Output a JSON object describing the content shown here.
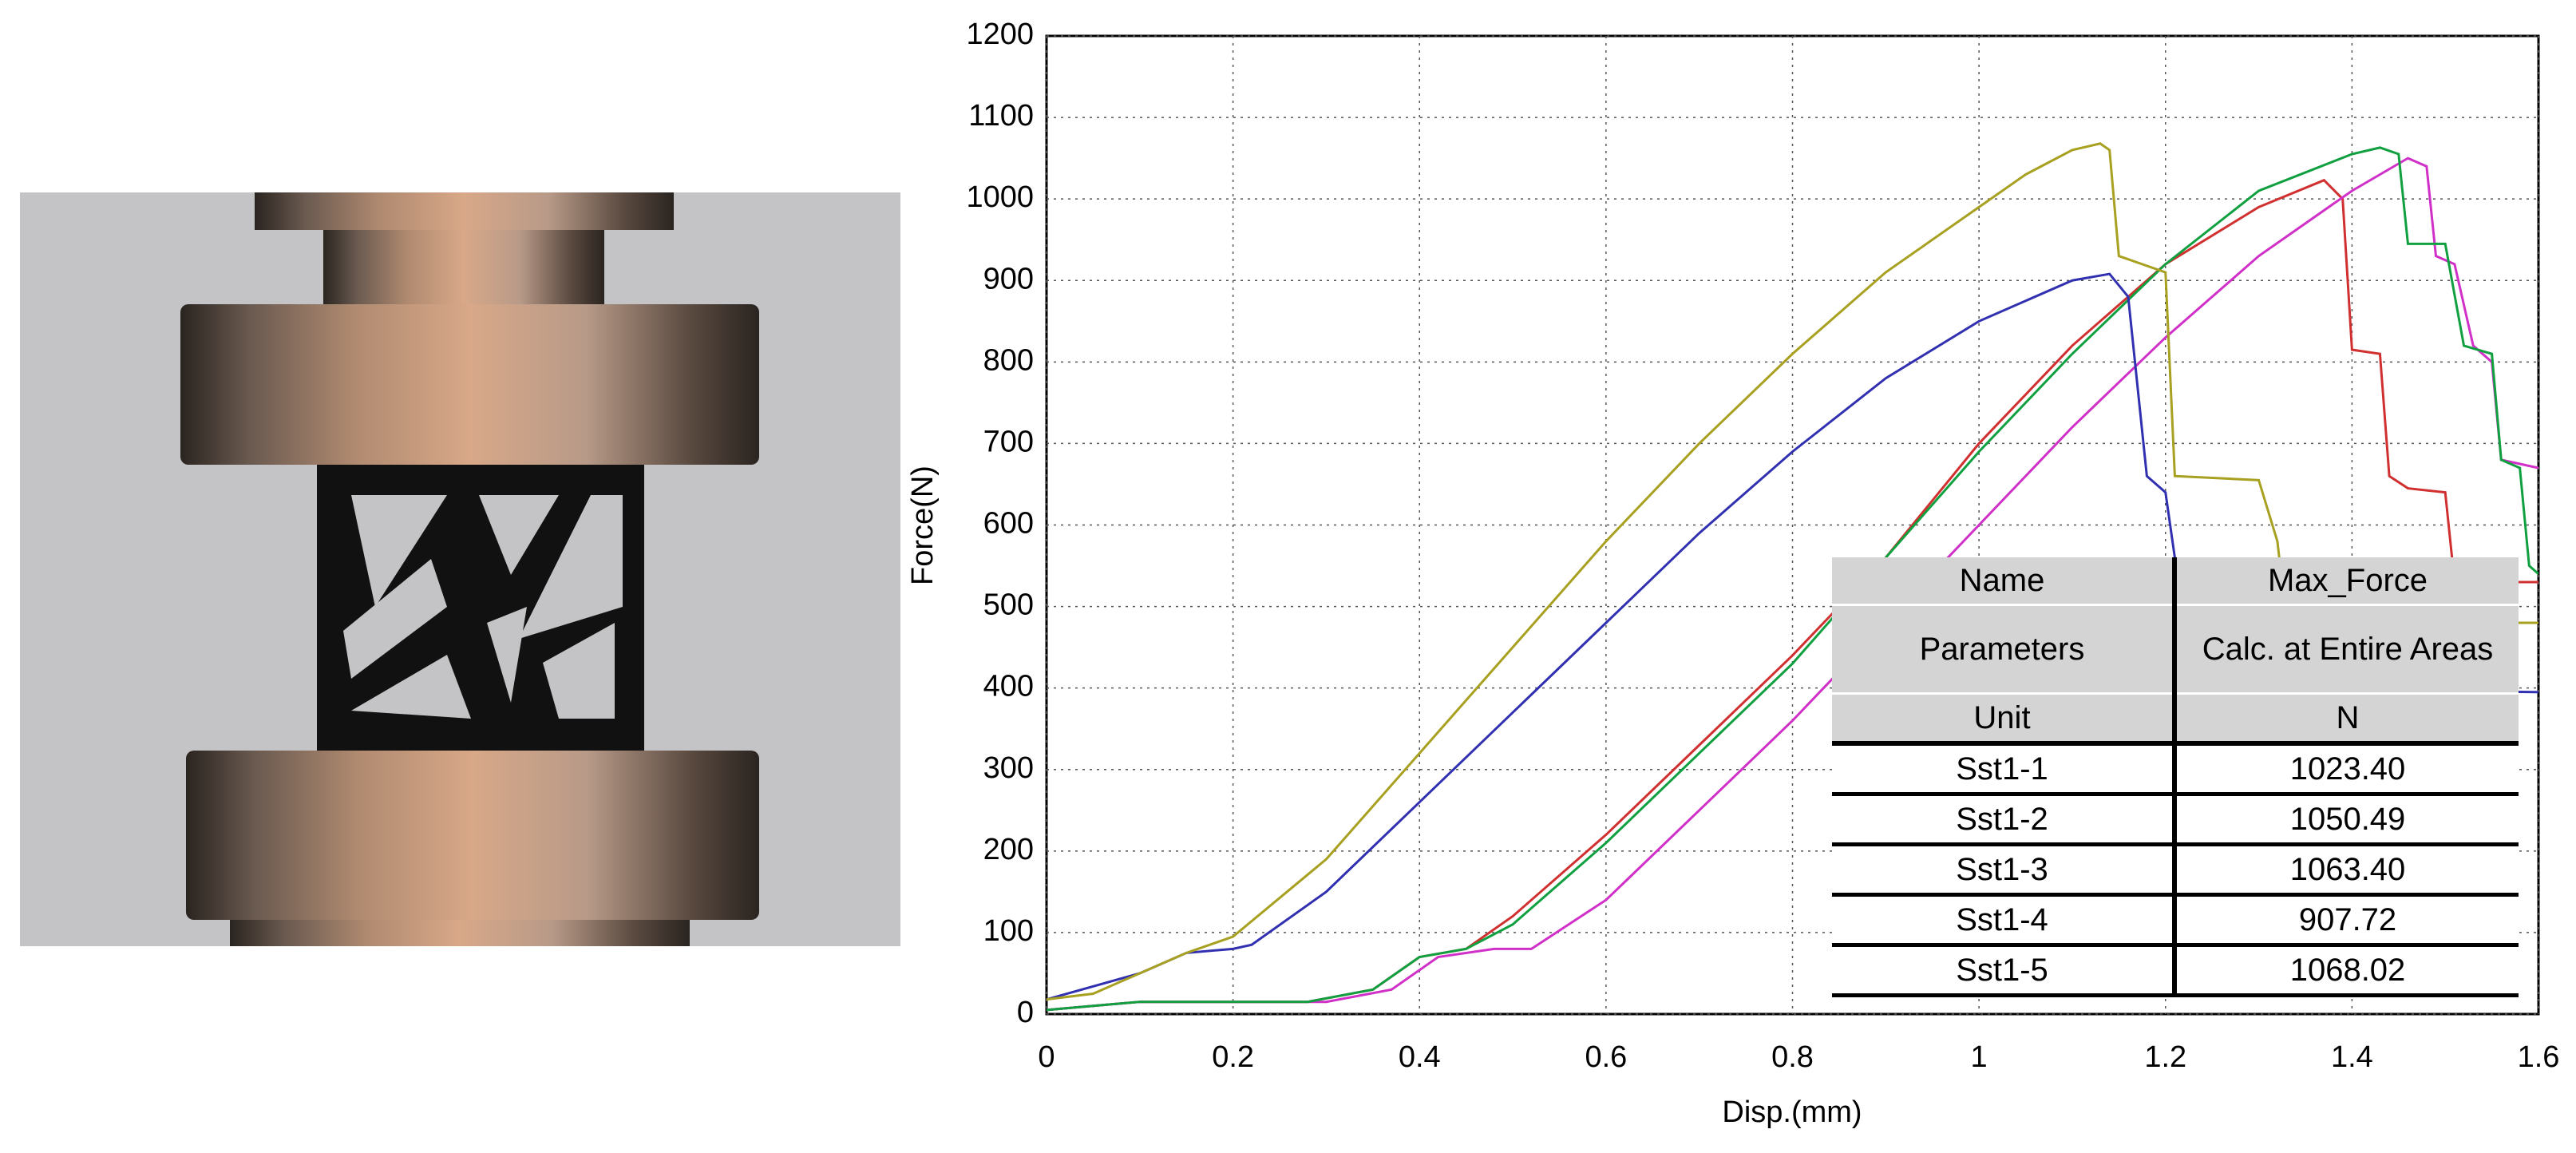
{
  "chart_data": {
    "type": "line",
    "xlabel": "Disp.(mm)",
    "ylabel": "Force(N)",
    "xlim": [
      0,
      1.6
    ],
    "ylim": [
      0,
      1200
    ],
    "xticks": [
      0,
      0.2,
      0.4,
      0.6,
      0.8,
      1,
      1.2,
      1.4,
      1.6
    ],
    "yticks": [
      0,
      100,
      200,
      300,
      400,
      500,
      600,
      700,
      800,
      900,
      1000,
      1100,
      1200
    ],
    "grid": true,
    "series": [
      {
        "color": "#d03030",
        "x": [
          0,
          0.1,
          0.28,
          0.35,
          0.4,
          0.45,
          0.5,
          0.6,
          0.7,
          0.8,
          0.9,
          1.0,
          1.1,
          1.2,
          1.3,
          1.37,
          1.39,
          1.4,
          1.43,
          1.44,
          1.46,
          1.5,
          1.51,
          1.6
        ],
        "values": [
          5,
          15,
          15,
          30,
          70,
          80,
          120,
          220,
          330,
          440,
          560,
          700,
          820,
          920,
          990,
          1023,
          1000,
          815,
          810,
          660,
          645,
          640,
          530,
          530
        ]
      },
      {
        "color": "#d030c8",
        "x": [
          0,
          0.1,
          0.3,
          0.37,
          0.42,
          0.48,
          0.52,
          0.6,
          0.7,
          0.8,
          0.9,
          1.0,
          1.1,
          1.2,
          1.3,
          1.4,
          1.46,
          1.48,
          1.49,
          1.51,
          1.53,
          1.55,
          1.56,
          1.6
        ],
        "values": [
          5,
          15,
          15,
          30,
          70,
          80,
          80,
          140,
          250,
          360,
          480,
          600,
          720,
          830,
          930,
          1010,
          1050,
          1040,
          930,
          920,
          820,
          800,
          680,
          670
        ]
      },
      {
        "color": "#10a040",
        "x": [
          0,
          0.1,
          0.28,
          0.35,
          0.4,
          0.45,
          0.5,
          0.6,
          0.7,
          0.8,
          0.9,
          1.0,
          1.1,
          1.2,
          1.3,
          1.4,
          1.43,
          1.45,
          1.46,
          1.5,
          1.52,
          1.55,
          1.56,
          1.58,
          1.59,
          1.6
        ],
        "values": [
          5,
          15,
          15,
          30,
          70,
          80,
          110,
          210,
          320,
          430,
          560,
          690,
          810,
          920,
          1010,
          1055,
          1063,
          1055,
          945,
          945,
          820,
          810,
          680,
          670,
          550,
          540
        ]
      },
      {
        "color": "#3030b0",
        "x": [
          0,
          0.1,
          0.15,
          0.2,
          0.22,
          0.3,
          0.4,
          0.5,
          0.6,
          0.7,
          0.8,
          0.9,
          1.0,
          1.1,
          1.14,
          1.16,
          1.18,
          1.2,
          1.21,
          1.22,
          1.6
        ],
        "values": [
          18,
          50,
          75,
          80,
          85,
          150,
          260,
          370,
          480,
          590,
          690,
          780,
          850,
          900,
          908,
          880,
          660,
          640,
          560,
          400,
          395
        ]
      },
      {
        "color": "#a8a020",
        "x": [
          0,
          0.05,
          0.1,
          0.15,
          0.2,
          0.3,
          0.4,
          0.5,
          0.6,
          0.7,
          0.8,
          0.9,
          1.0,
          1.05,
          1.1,
          1.13,
          1.14,
          1.15,
          1.2,
          1.21,
          1.3,
          1.32,
          1.33,
          1.6
        ],
        "values": [
          18,
          25,
          50,
          75,
          95,
          190,
          320,
          450,
          580,
          700,
          810,
          910,
          990,
          1030,
          1060,
          1068,
          1060,
          930,
          910,
          660,
          655,
          580,
          480,
          480
        ]
      }
    ]
  },
  "table": {
    "rows": [
      [
        "Name",
        "Max_Force"
      ],
      [
        "Parameters",
        "Calc. at Entire Areas"
      ],
      [
        "Unit",
        "N"
      ],
      [
        "Sst1-1",
        "1023.40"
      ],
      [
        "Sst1-2",
        "1050.49"
      ],
      [
        "Sst1-3",
        "1063.40"
      ],
      [
        "Sst1-4",
        "907.72"
      ],
      [
        "Sst1-5",
        "1068.02"
      ]
    ]
  }
}
